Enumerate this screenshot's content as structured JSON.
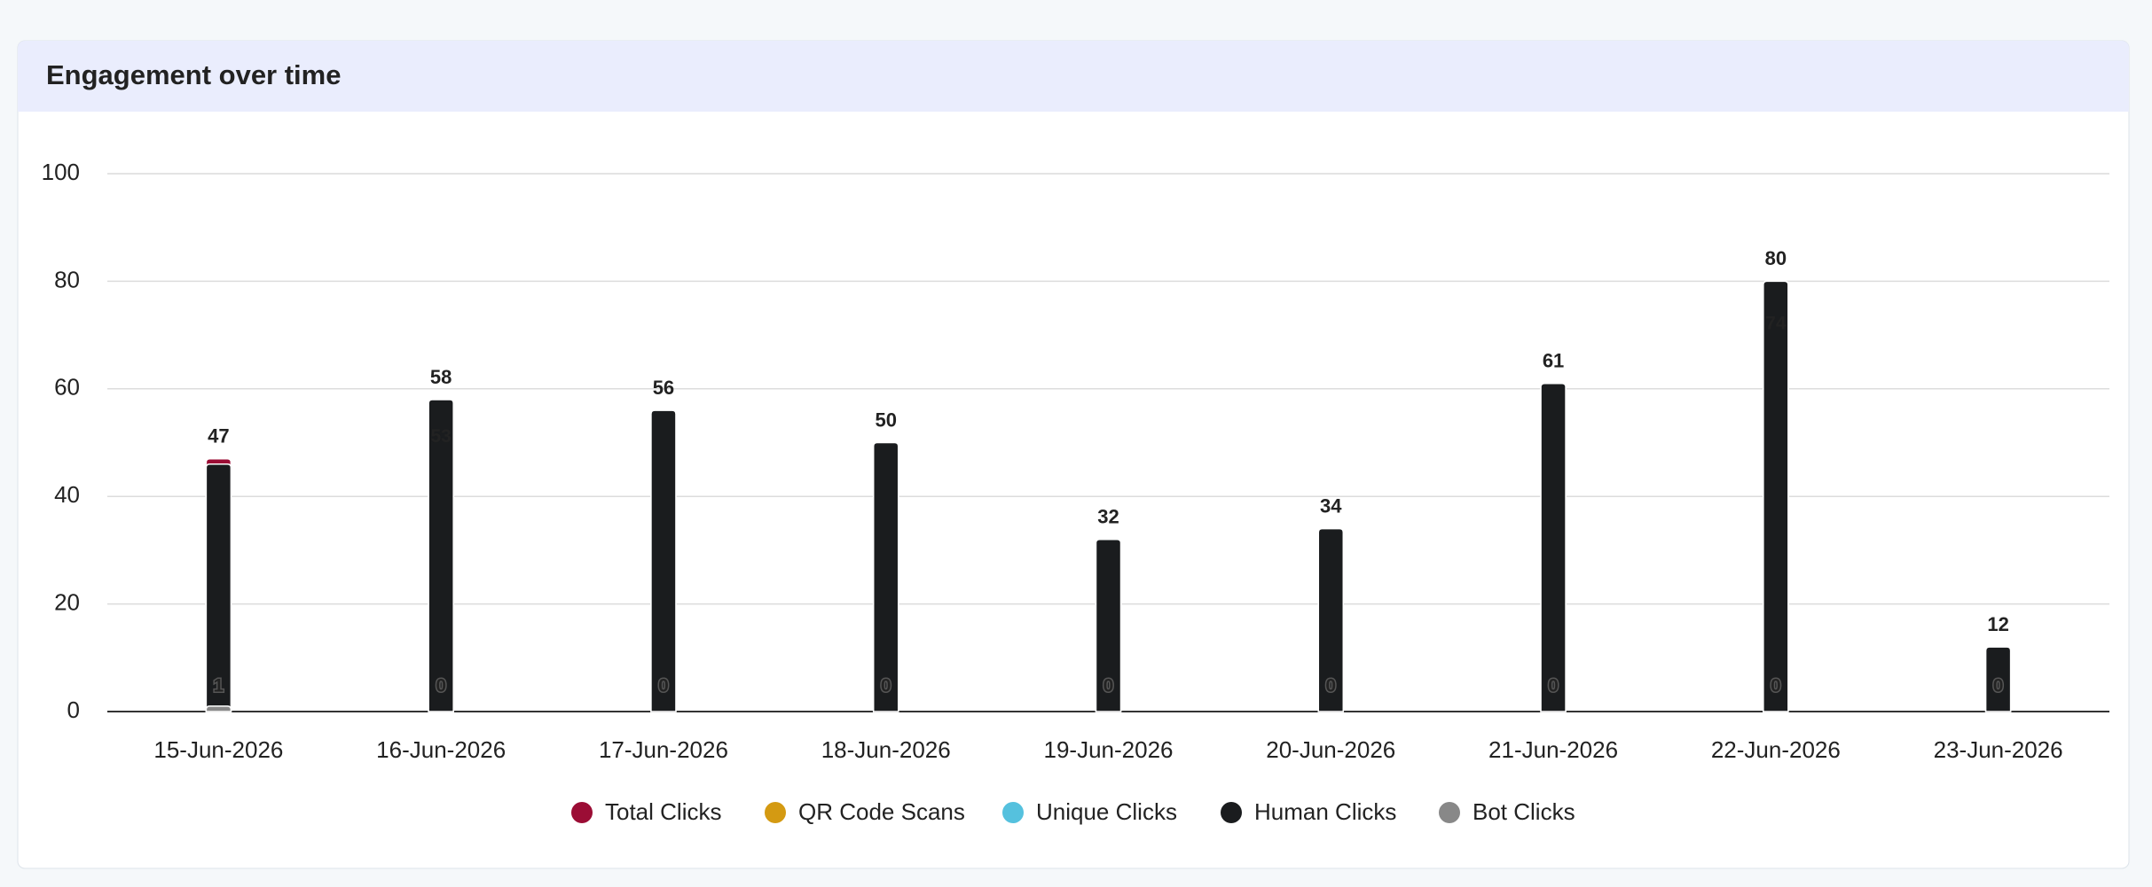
{
  "chart_data": {
    "type": "bar",
    "title": "Engagement over time",
    "categories": [
      "15-Jun-2026",
      "16-Jun-2026",
      "17-Jun-2026",
      "18-Jun-2026",
      "19-Jun-2026",
      "20-Jun-2026",
      "21-Jun-2026",
      "22-Jun-2026",
      "23-Jun-2026"
    ],
    "series": [
      {
        "name": "Total Clicks",
        "color": "#9b0d35",
        "values": [
          47,
          58,
          56,
          50,
          32,
          34,
          61,
          80,
          12
        ]
      },
      {
        "name": "QR Code Scans",
        "color": "#d49a12",
        "values": [
          0,
          0,
          0,
          0,
          0,
          0,
          0,
          0,
          0
        ]
      },
      {
        "name": "Unique Clicks",
        "color": "#55c1de",
        "values": [
          null,
          53,
          null,
          null,
          null,
          null,
          null,
          74,
          null
        ]
      },
      {
        "name": "Human Clicks",
        "color": "#1a1c1e",
        "values": [
          46,
          58,
          56,
          50,
          32,
          34,
          61,
          80,
          12
        ]
      },
      {
        "name": "Bot Clicks",
        "color": "#888888",
        "values": [
          1,
          0,
          0,
          0,
          0,
          0,
          0,
          0,
          0
        ]
      }
    ],
    "ylim": [
      0,
      100
    ],
    "yticks": [
      0,
      20,
      40,
      60,
      80,
      100
    ],
    "grid": true,
    "legend": "bottom"
  }
}
